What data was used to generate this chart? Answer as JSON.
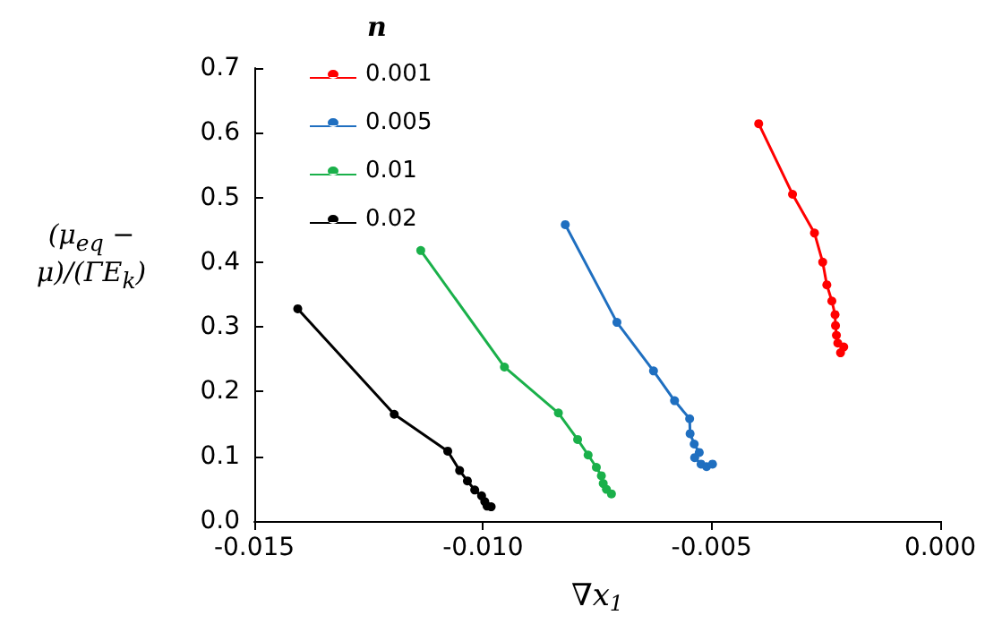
{
  "chart_data": {
    "type": "line",
    "xlabel": "∇x$_{1}$",
    "ylabel": "(μ$_{eq}$ − μ)/(ΓE$_{k}$)",
    "legend_title": "n",
    "legend": "top left",
    "marker": "circle",
    "line_style": "solid",
    "grid": false,
    "xlim": [
      -0.015,
      0
    ],
    "xticks": [
      {
        "value": -0.015,
        "label": "-0.015"
      },
      {
        "value": -0.01,
        "label": "-0.010"
      },
      {
        "value": -0.005,
        "label": "-0.005"
      },
      {
        "value": 0,
        "label": "0.000"
      }
    ],
    "ylim": [
      0,
      0.7
    ],
    "yticks": [
      {
        "value": 0,
        "label": "0.0"
      },
      {
        "value": 0.1,
        "label": "0.1"
      },
      {
        "value": 0.2,
        "label": "0.2"
      },
      {
        "value": 0.3,
        "label": "0.3"
      },
      {
        "value": 0.4,
        "label": "0.4"
      },
      {
        "value": 0.5,
        "label": "0.5"
      },
      {
        "value": 0.6,
        "label": "0.6"
      },
      {
        "value": 0.7,
        "label": "0.7"
      }
    ],
    "series": [
      {
        "name": "0.001",
        "color": "#ff0000",
        "x": [
          -0.00397,
          -0.00323,
          -0.00275,
          -0.00257,
          -0.00248,
          -0.00237,
          -0.0023,
          -0.00229,
          -0.00227,
          -0.00224,
          -0.00211,
          -0.00218
        ],
        "values": [
          0.614,
          0.505,
          0.445,
          0.4,
          0.365,
          0.34,
          0.319,
          0.302,
          0.287,
          0.275,
          0.269,
          0.26
        ]
      },
      {
        "name": "0.005",
        "color": "#1f6fc0",
        "x": [
          -0.0082,
          -0.00707,
          -0.00627,
          -0.00581,
          -0.00548,
          -0.00547,
          -0.00538,
          -0.00527,
          -0.00537,
          -0.00523,
          -0.00511,
          -0.00498
        ],
        "values": [
          0.458,
          0.307,
          0.232,
          0.186,
          0.158,
          0.135,
          0.119,
          0.106,
          0.098,
          0.088,
          0.084,
          0.088
        ]
      },
      {
        "name": "0.01",
        "color": "#1ab04a",
        "x": [
          -0.01136,
          -0.00953,
          -0.00835,
          -0.00793,
          -0.0077,
          -0.00752,
          -0.00741,
          -0.00737,
          -0.0073,
          -0.00719
        ],
        "values": [
          0.418,
          0.238,
          0.167,
          0.126,
          0.102,
          0.083,
          0.07,
          0.058,
          0.049,
          0.042
        ]
      },
      {
        "name": "0.02",
        "color": "#000000",
        "x": [
          -0.01405,
          -0.01194,
          -0.01077,
          -0.01051,
          -0.01034,
          -0.01018,
          -0.01003,
          -0.00996,
          -0.00991,
          -0.00982
        ],
        "values": [
          0.328,
          0.165,
          0.108,
          0.078,
          0.062,
          0.048,
          0.039,
          0.03,
          0.023,
          0.022
        ]
      }
    ]
  }
}
